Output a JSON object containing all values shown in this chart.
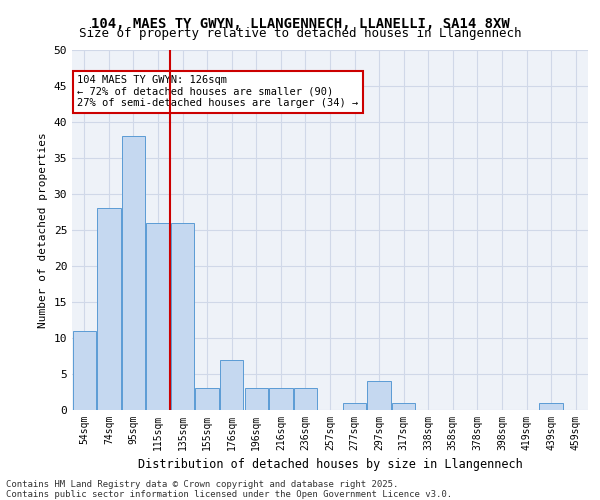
{
  "title1": "104, MAES TY GWYN, LLANGENNECH, LLANELLI, SA14 8XW",
  "title2": "Size of property relative to detached houses in Llangennech",
  "xlabel": "Distribution of detached houses by size in Llangennech",
  "ylabel": "Number of detached properties",
  "categories": [
    "54sqm",
    "74sqm",
    "95sqm",
    "115sqm",
    "135sqm",
    "155sqm",
    "176sqm",
    "196sqm",
    "216sqm",
    "236sqm",
    "257sqm",
    "277sqm",
    "297sqm",
    "317sqm",
    "338sqm",
    "358sqm",
    "378sqm",
    "398sqm",
    "419sqm",
    "439sqm",
    "459sqm"
  ],
  "values": [
    11,
    28,
    38,
    26,
    26,
    3,
    7,
    3,
    3,
    3,
    0,
    1,
    4,
    1,
    0,
    0,
    0,
    0,
    0,
    1,
    0
  ],
  "bar_color": "#c5d8f0",
  "bar_edge_color": "#5b9bd5",
  "grid_color": "#d0d8e8",
  "vline_x": 3.5,
  "vline_color": "#cc0000",
  "annotation_box_text": "104 MAES TY GWYN: 126sqm\n← 72% of detached houses are smaller (90)\n27% of semi-detached houses are larger (34) →",
  "annotation_box_color": "#cc0000",
  "ylim": [
    0,
    50
  ],
  "yticks": [
    0,
    5,
    10,
    15,
    20,
    25,
    30,
    35,
    40,
    45,
    50
  ],
  "footer_text": "Contains HM Land Registry data © Crown copyright and database right 2025.\nContains public sector information licensed under the Open Government Licence v3.0.",
  "bg_color": "#eef2f8"
}
